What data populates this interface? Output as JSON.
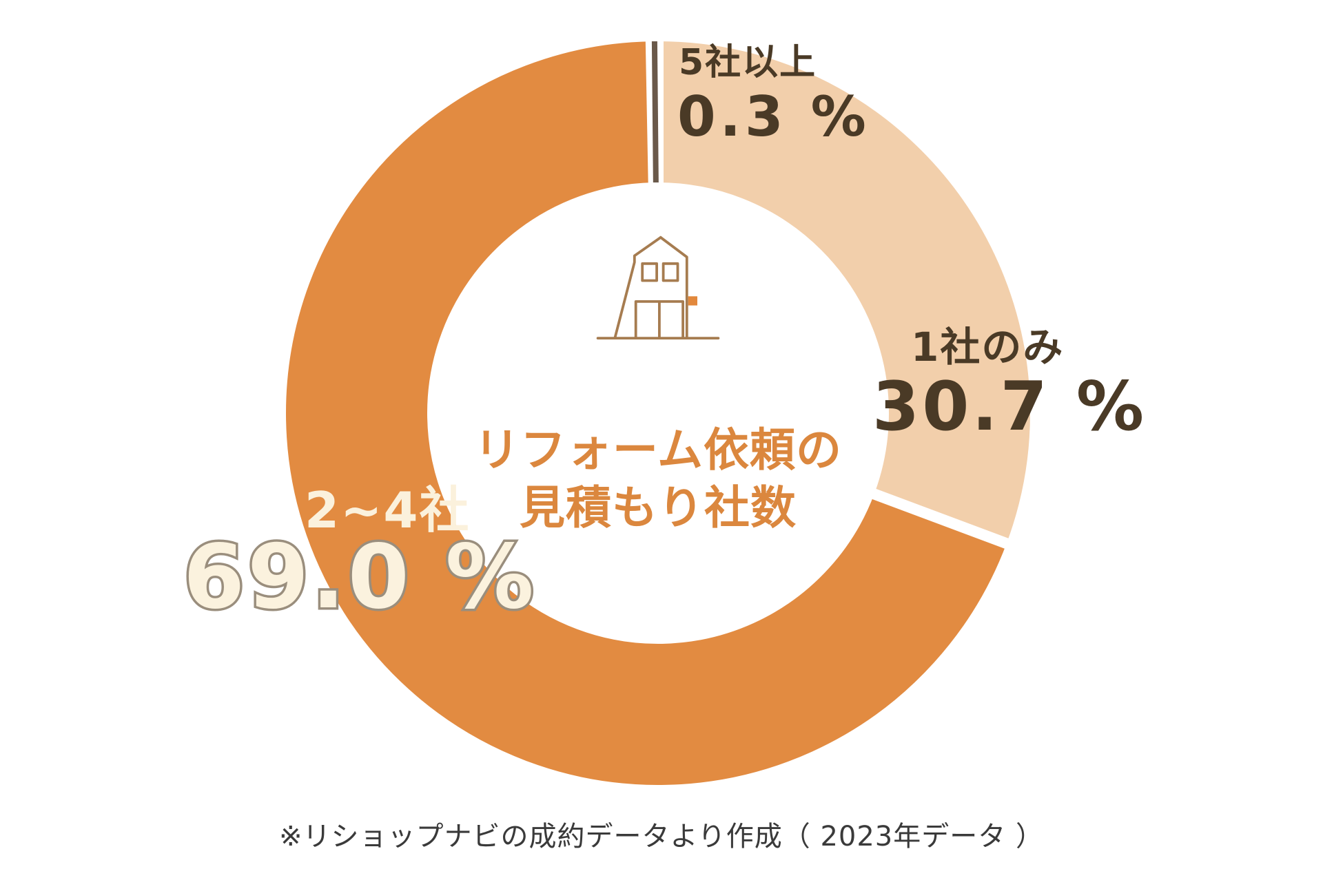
{
  "chart_data": {
    "type": "pie",
    "donut": true,
    "title_lines": [
      "リフォーム依頼の",
      "見積もり社数"
    ],
    "start_angle_deg": 0,
    "direction": "clockwise",
    "segments": [
      {
        "label": "1社のみ",
        "value": 30.7,
        "color": "#F2CFAB"
      },
      {
        "label": "2~4社",
        "value": 69.0,
        "color": "#E28B41"
      },
      {
        "label": "5社以上",
        "value": 0.3,
        "color": "#6A594A"
      }
    ],
    "labels": {
      "five_plus": {
        "name": "5社以上",
        "value_text": "0.3 %"
      },
      "one_only": {
        "name": "1社のみ",
        "value_text": "30.7 %"
      },
      "two_four": {
        "name": "2~4社",
        "value_text": "69.0 %"
      }
    },
    "source_note": "※リショップナビの成約データより作成（ 2023年データ ）",
    "colors": {
      "label_text": "#4A3A26",
      "center_text": "#DB873E",
      "light_value_fill": "#FBF2DE",
      "light_value_outline": "#9A8E7D",
      "house_icon_stroke": "#A67C50",
      "house_icon_accent": "#E2883C"
    }
  }
}
